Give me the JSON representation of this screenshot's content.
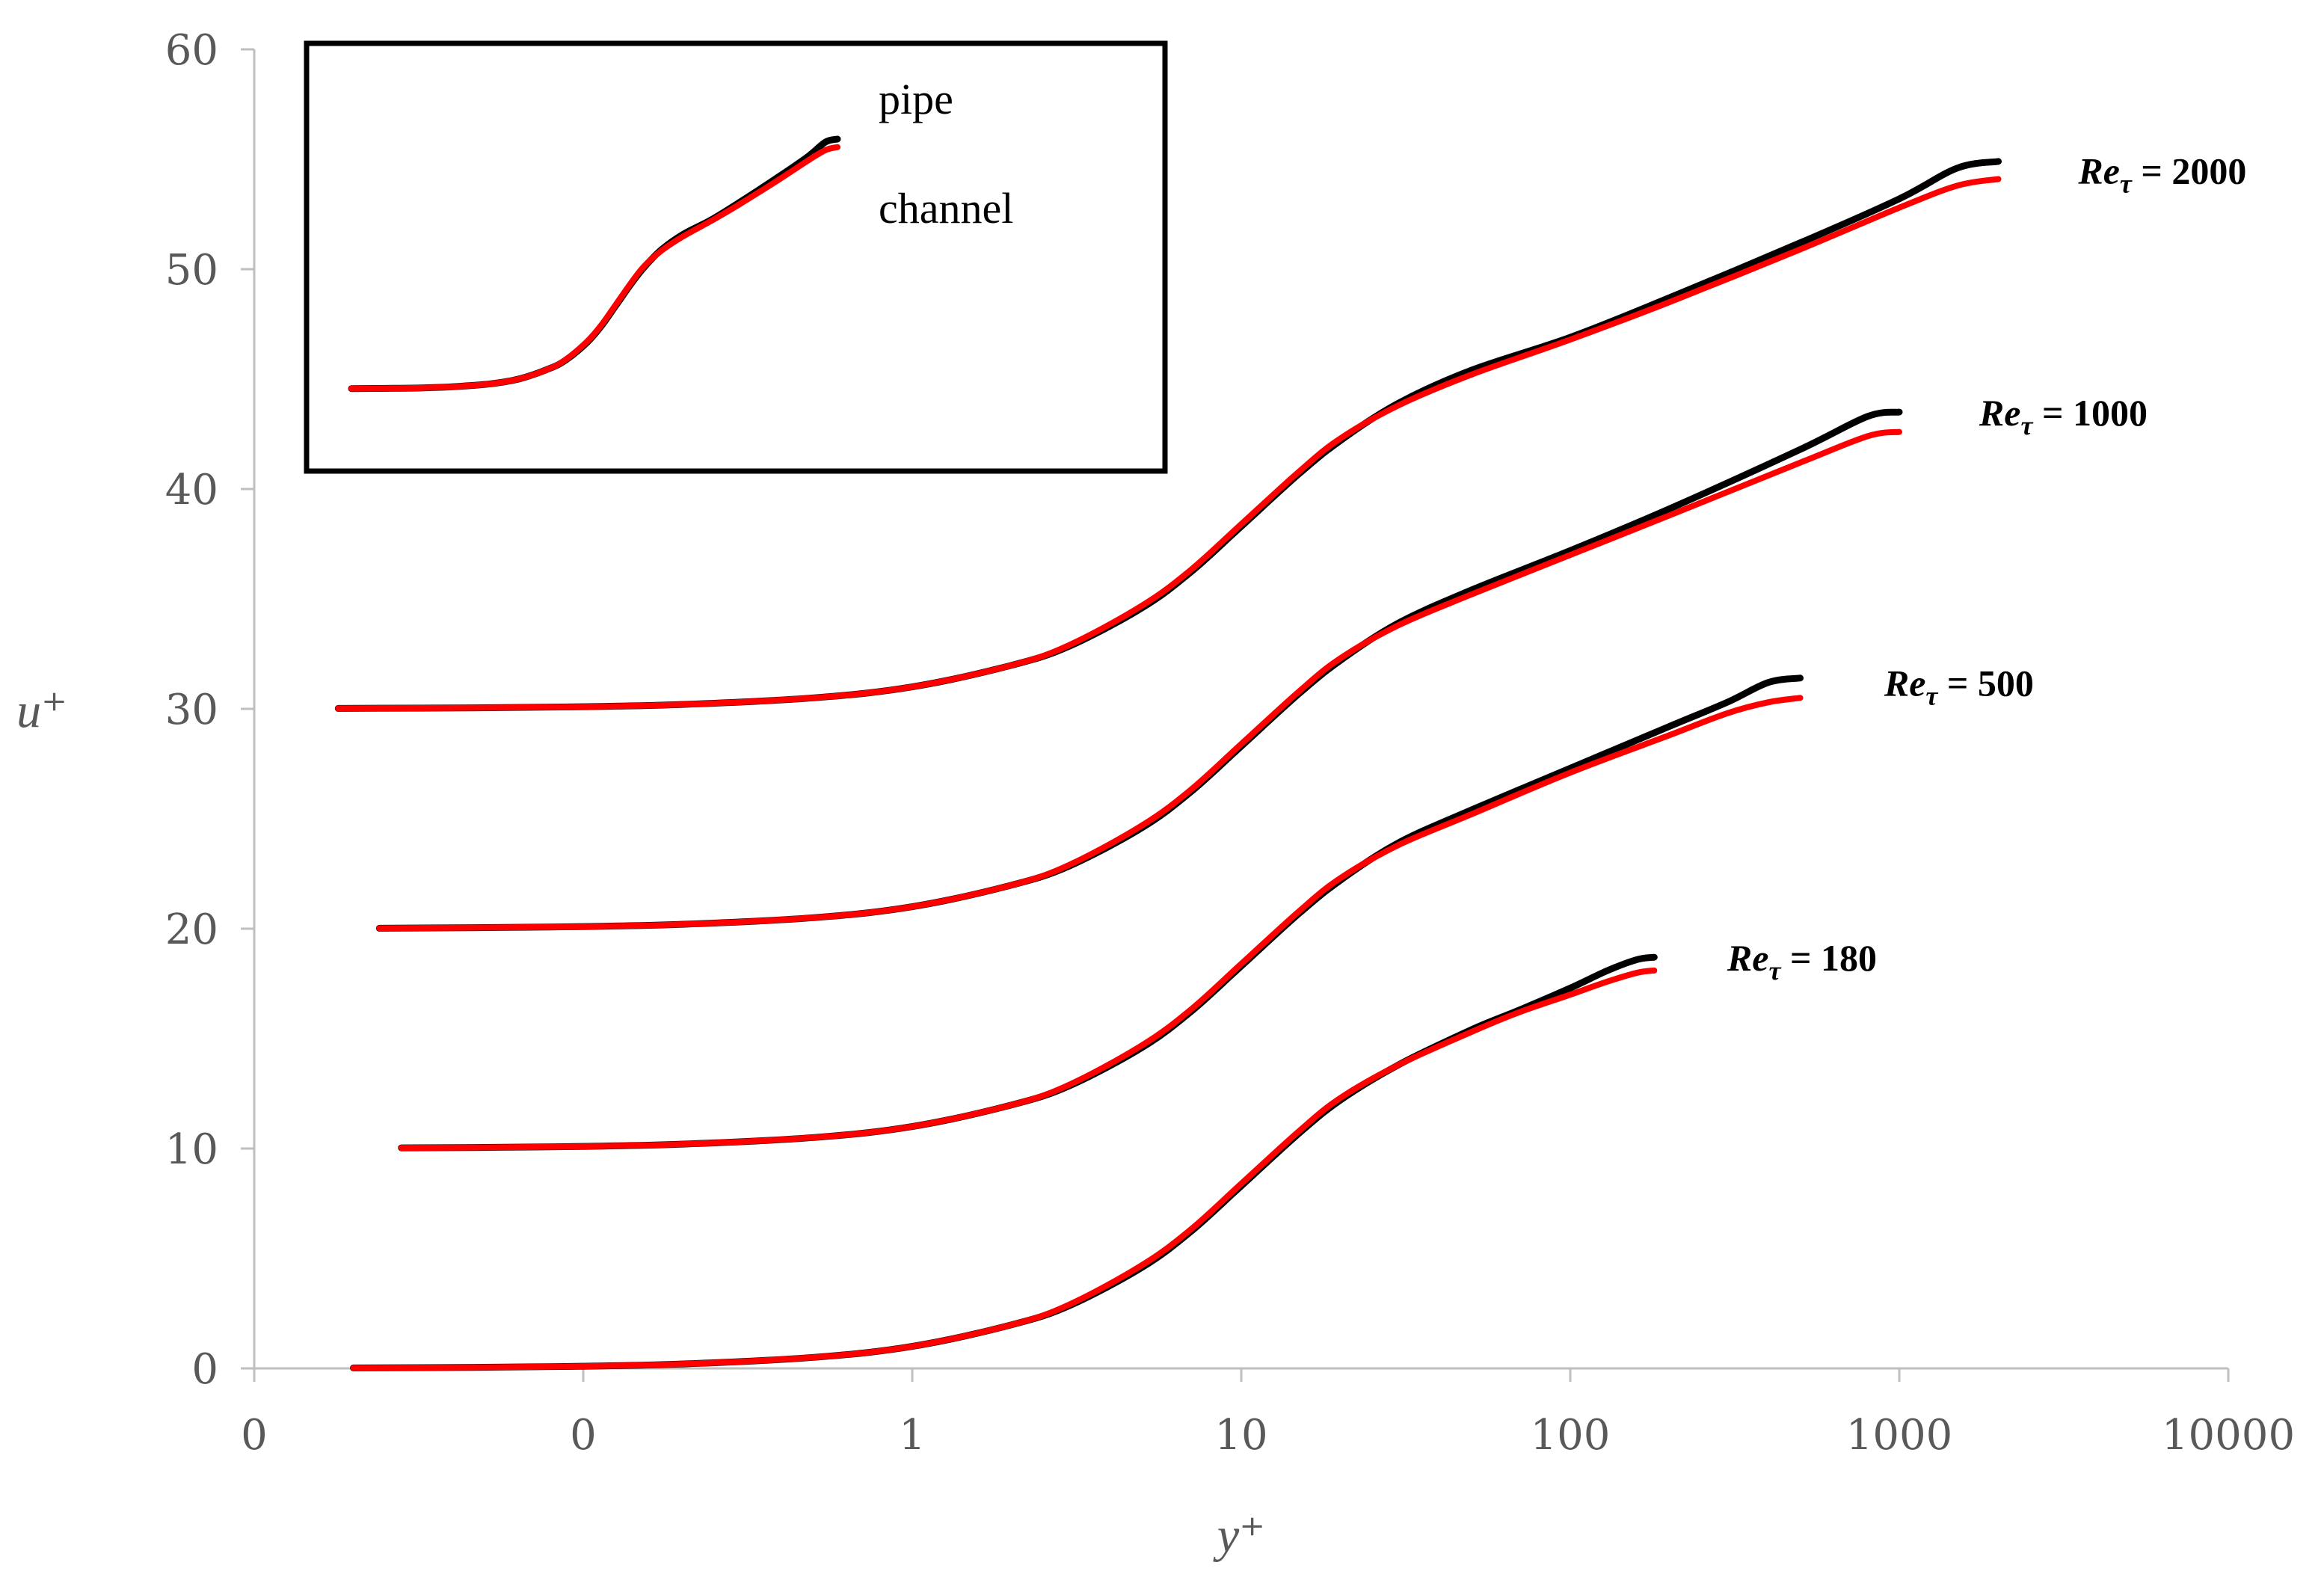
{
  "chart_data": {
    "type": "line",
    "title": "",
    "xlabel": "y⁺",
    "ylabel": "u⁺",
    "x_scale": "log",
    "xlim": [
      0.01,
      10000
    ],
    "ylim": [
      0,
      60
    ],
    "x_ticks": [
      0.01,
      0.1,
      1,
      10,
      100,
      1000,
      10000
    ],
    "x_tick_labels": [
      "0",
      "0",
      "1",
      "10",
      "100",
      "1000",
      "10000"
    ],
    "y_ticks": [
      0,
      10,
      20,
      30,
      40,
      50,
      60
    ],
    "y_tick_labels": [
      "0",
      "10",
      "20",
      "30",
      "40",
      "50",
      "60"
    ],
    "grid": false,
    "colors": {
      "pipe": "#000000",
      "channel": "#ff0000",
      "axis": "#bfbfbf",
      "tick_text": "#595959"
    },
    "legend": {
      "placement": "top-left",
      "entries": [
        {
          "name": "pipe",
          "color": "#000000"
        },
        {
          "name": "channel",
          "color": "#ff0000"
        }
      ]
    },
    "annotations": [
      {
        "base": "Re",
        "sub": "τ",
        "rest": " = 2000",
        "x": 3500,
        "y": 54.5
      },
      {
        "base": "Re",
        "sub": "τ",
        "rest": " = 1000",
        "x": 1750,
        "y": 43.5
      },
      {
        "base": "Re",
        "sub": "τ",
        "rest": " = 500",
        "x": 900,
        "y": 31.2
      },
      {
        "base": "Re",
        "sub": "τ",
        "rest": " = 180",
        "x": 300,
        "y": 18.7
      }
    ],
    "profiles": [
      {
        "name": "Reτ = 180",
        "offset": 0,
        "channel": {
          "x": [
            0.02,
            0.05,
            0.1,
            0.2,
            0.5,
            1,
            2,
            3,
            5,
            7,
            10,
            15,
            20,
            30,
            50,
            70,
            100,
            130,
            160,
            180
          ],
          "y": [
            0.02,
            0.05,
            0.1,
            0.2,
            0.5,
            1,
            1.98,
            2.9,
            4.7,
            6.3,
            8.4,
            10.8,
            12.3,
            13.8,
            15.3,
            16.2,
            17.0,
            17.6,
            18.0,
            18.1
          ]
        },
        "pipe": {
          "x": [
            0.02,
            0.05,
            0.1,
            0.2,
            0.5,
            1,
            2,
            3,
            5,
            7,
            10,
            15,
            20,
            30,
            50,
            70,
            100,
            130,
            160,
            180
          ],
          "y": [
            0.02,
            0.05,
            0.1,
            0.2,
            0.5,
            1,
            1.98,
            2.85,
            4.6,
            6.2,
            8.3,
            10.7,
            12.2,
            13.8,
            15.4,
            16.3,
            17.3,
            18.1,
            18.6,
            18.7
          ]
        }
      },
      {
        "name": "Reτ = 500",
        "offset": 10,
        "channel": {
          "x": [
            0.028,
            0.05,
            0.1,
            0.2,
            0.5,
            1,
            2,
            3,
            5,
            7,
            10,
            15,
            20,
            30,
            50,
            100,
            200,
            300,
            400,
            500
          ],
          "y": [
            10.03,
            10.05,
            10.1,
            10.2,
            10.5,
            11,
            11.98,
            12.9,
            14.7,
            16.3,
            18.4,
            20.8,
            22.3,
            23.8,
            25.2,
            27.1,
            28.8,
            29.8,
            30.3,
            30.5
          ]
        },
        "pipe": {
          "x": [
            0.028,
            0.05,
            0.1,
            0.2,
            0.5,
            1,
            2,
            3,
            5,
            7,
            10,
            15,
            20,
            30,
            50,
            100,
            200,
            300,
            400,
            500
          ],
          "y": [
            10.03,
            10.05,
            10.1,
            10.2,
            10.5,
            11,
            11.98,
            12.85,
            14.6,
            16.2,
            18.3,
            20.7,
            22.2,
            23.9,
            25.4,
            27.3,
            29.2,
            30.3,
            31.2,
            31.4
          ]
        }
      },
      {
        "name": "Reτ = 1000",
        "offset": 20,
        "channel": {
          "x": [
            0.024,
            0.05,
            0.1,
            0.2,
            0.5,
            1,
            2,
            3,
            5,
            7,
            10,
            15,
            20,
            30,
            50,
            100,
            200,
            500,
            800,
            1000
          ],
          "y": [
            20.02,
            20.05,
            20.1,
            20.2,
            20.5,
            21,
            21.98,
            22.9,
            24.7,
            26.3,
            28.4,
            30.8,
            32.3,
            33.8,
            35.2,
            37.0,
            38.8,
            41.2,
            42.4,
            42.6
          ]
        },
        "pipe": {
          "x": [
            0.024,
            0.05,
            0.1,
            0.2,
            0.5,
            1,
            2,
            3,
            5,
            7,
            10,
            15,
            20,
            30,
            50,
            100,
            200,
            500,
            800,
            1000
          ],
          "y": [
            20.02,
            20.05,
            20.1,
            20.2,
            20.5,
            21,
            21.98,
            22.85,
            24.6,
            26.2,
            28.3,
            30.7,
            32.2,
            33.9,
            35.4,
            37.2,
            39.1,
            41.8,
            43.3,
            43.5
          ]
        }
      },
      {
        "name": "Reτ = 2000",
        "offset": 30,
        "channel": {
          "x": [
            0.018,
            0.05,
            0.1,
            0.2,
            0.5,
            1,
            2,
            3,
            5,
            7,
            10,
            15,
            20,
            30,
            50,
            100,
            200,
            500,
            1000,
            1500,
            2000
          ],
          "y": [
            30.02,
            30.05,
            30.1,
            30.2,
            30.5,
            31,
            31.98,
            32.9,
            34.7,
            36.3,
            38.4,
            40.8,
            42.3,
            43.8,
            45.2,
            46.8,
            48.5,
            50.9,
            52.8,
            53.8,
            54.1
          ]
        },
        "pipe": {
          "x": [
            0.018,
            0.05,
            0.1,
            0.2,
            0.5,
            1,
            2,
            3,
            5,
            7,
            10,
            15,
            20,
            30,
            50,
            100,
            200,
            500,
            1000,
            1500,
            2000
          ],
          "y": [
            30.02,
            30.05,
            30.1,
            30.2,
            30.5,
            31,
            31.98,
            32.85,
            34.6,
            36.2,
            38.3,
            40.7,
            42.2,
            43.9,
            45.4,
            46.9,
            48.7,
            51.2,
            53.2,
            54.6,
            54.9
          ]
        }
      }
    ],
    "legend_sample": {
      "channel": {
        "x": [
          0.018,
          0.05,
          0.1,
          0.2,
          0.5,
          1,
          2,
          3,
          5,
          7,
          10,
          15,
          20,
          30,
          50,
          100,
          200,
          500,
          1000,
          1500,
          2000
        ],
        "y": [
          30.02,
          30.05,
          30.1,
          30.2,
          30.5,
          31,
          31.98,
          32.9,
          34.7,
          36.3,
          38.4,
          40.8,
          42.3,
          43.8,
          45.2,
          46.8,
          48.5,
          50.9,
          52.8,
          53.8,
          54.1
        ]
      },
      "pipe": {
        "x": [
          0.018,
          0.05,
          0.1,
          0.2,
          0.5,
          1,
          2,
          3,
          5,
          7,
          10,
          15,
          20,
          30,
          50,
          100,
          200,
          500,
          1000,
          1500,
          2000
        ],
        "y": [
          30.02,
          30.05,
          30.1,
          30.2,
          30.5,
          31,
          31.98,
          32.85,
          34.6,
          36.2,
          38.3,
          40.7,
          42.2,
          43.9,
          45.4,
          46.9,
          48.7,
          51.2,
          53.2,
          54.6,
          54.9
        ]
      }
    }
  }
}
